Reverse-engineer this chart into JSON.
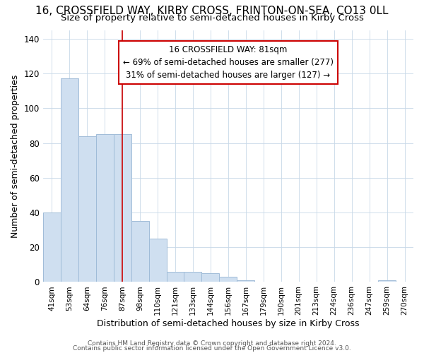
{
  "title1": "16, CROSSFIELD WAY, KIRBY CROSS, FRINTON-ON-SEA, CO13 0LL",
  "title2": "Size of property relative to semi-detached houses in Kirby Cross",
  "xlabel": "Distribution of semi-detached houses by size in Kirby Cross",
  "ylabel": "Number of semi-detached properties",
  "categories": [
    "41sqm",
    "53sqm",
    "64sqm",
    "76sqm",
    "87sqm",
    "98sqm",
    "110sqm",
    "121sqm",
    "133sqm",
    "144sqm",
    "156sqm",
    "167sqm",
    "179sqm",
    "190sqm",
    "201sqm",
    "213sqm",
    "224sqm",
    "236sqm",
    "247sqm",
    "259sqm",
    "270sqm"
  ],
  "values": [
    40,
    117,
    84,
    85,
    85,
    35,
    25,
    6,
    6,
    5,
    3,
    1,
    0,
    0,
    0,
    0,
    0,
    0,
    0,
    1,
    0
  ],
  "ylim": [
    0,
    145
  ],
  "yticks": [
    0,
    20,
    40,
    60,
    80,
    100,
    120,
    140
  ],
  "bar_color": "#cfdff0",
  "bar_edge_color": "#a0bcd8",
  "red_line_x": 4.0,
  "annotation_line1": "16 CROSSFIELD WAY: 81sqm",
  "annotation_line2": "← 69% of semi-detached houses are smaller (277)",
  "annotation_line3": "31% of semi-detached houses are larger (127) →",
  "footer_text1": "Contains HM Land Registry data © Crown copyright and database right 2024.",
  "footer_text2": "Contains public sector information licensed under the Open Government Licence v3.0.",
  "background_color": "#ffffff",
  "plot_bg_color": "#ffffff",
  "title1_fontsize": 11,
  "title2_fontsize": 9.5
}
